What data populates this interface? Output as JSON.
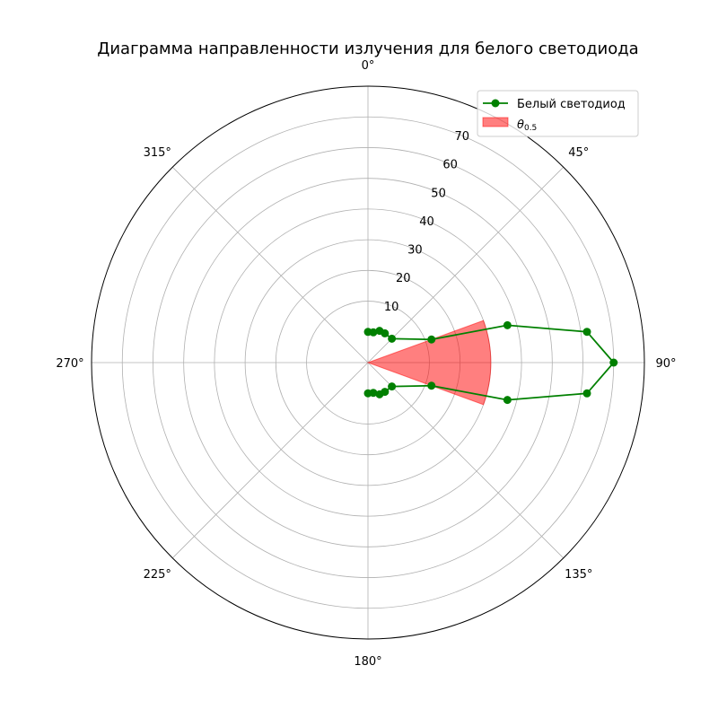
{
  "chart_data": {
    "type": "polar-line",
    "title": "Диаграмма направленности излучения для белого светодиода",
    "theta_direction": "clockwise",
    "theta_zero": "top",
    "angle_ticks": [
      "0°",
      "45°",
      "90°",
      "135°",
      "180°",
      "225°",
      "270°",
      "315°"
    ],
    "angle_tick_values": [
      0,
      45,
      90,
      135,
      180,
      225,
      270,
      315
    ],
    "radial_ticks": [
      "10",
      "20",
      "30",
      "40",
      "50",
      "60",
      "70"
    ],
    "radial_tick_values": [
      10,
      20,
      30,
      40,
      50,
      60,
      70
    ],
    "rlim": [
      -10,
      80
    ],
    "grid": true,
    "legend_position": "top-right",
    "series": [
      {
        "name": "Белый светодиод",
        "color": "#008000",
        "marker": "circle",
        "points": [
          {
            "theta": 0,
            "r": 0
          },
          {
            "theta": 10,
            "r": 0
          },
          {
            "theta": 20,
            "r": 1
          },
          {
            "theta": 30,
            "r": 1
          },
          {
            "theta": 45,
            "r": 1
          },
          {
            "theta": 70,
            "r": 12
          },
          {
            "theta": 75,
            "r": 37
          },
          {
            "theta": 82,
            "r": 62
          },
          {
            "theta": 90,
            "r": 70
          },
          {
            "theta": 98,
            "r": 62
          },
          {
            "theta": 105,
            "r": 37
          },
          {
            "theta": 110,
            "r": 12
          },
          {
            "theta": 135,
            "r": 1
          },
          {
            "theta": 150,
            "r": 1
          },
          {
            "theta": 160,
            "r": 1
          },
          {
            "theta": 170,
            "r": 0
          },
          {
            "theta": 180,
            "r": 0
          }
        ]
      }
    ],
    "sector": {
      "name": "θ0.5",
      "legend_base": "θ",
      "legend_sub": "0.5",
      "color": "#ff0000",
      "opacity": 0.5,
      "theta_start": 70,
      "theta_end": 110,
      "r": 30
    }
  }
}
